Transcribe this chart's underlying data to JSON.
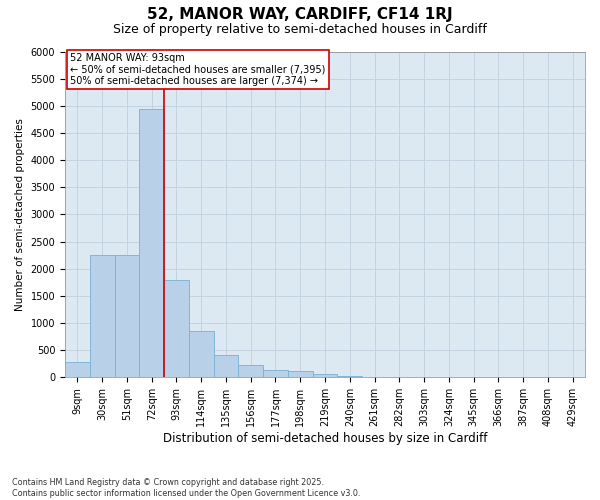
{
  "title": "52, MANOR WAY, CARDIFF, CF14 1RJ",
  "subtitle": "Size of property relative to semi-detached houses in Cardiff",
  "xlabel": "Distribution of semi-detached houses by size in Cardiff",
  "ylabel": "Number of semi-detached properties",
  "categories": [
    "9sqm",
    "30sqm",
    "51sqm",
    "72sqm",
    "93sqm",
    "114sqm",
    "135sqm",
    "156sqm",
    "177sqm",
    "198sqm",
    "219sqm",
    "240sqm",
    "261sqm",
    "282sqm",
    "303sqm",
    "324sqm",
    "345sqm",
    "366sqm",
    "387sqm",
    "408sqm",
    "429sqm"
  ],
  "values": [
    280,
    2250,
    2250,
    4950,
    1800,
    850,
    420,
    230,
    140,
    110,
    60,
    20,
    10,
    0,
    0,
    0,
    0,
    0,
    0,
    0,
    0
  ],
  "bar_color": "#b8d0e8",
  "bar_edge_color": "#7aafd4",
  "vline_color": "#cc0000",
  "vline_pos": 3.5,
  "annotation_text": "52 MANOR WAY: 93sqm\n← 50% of semi-detached houses are smaller (7,395)\n50% of semi-detached houses are larger (7,374) →",
  "annotation_box_color": "#ffffff",
  "annotation_box_edge": "#cc0000",
  "ylim": [
    0,
    6000
  ],
  "yticks": [
    0,
    500,
    1000,
    1500,
    2000,
    2500,
    3000,
    3500,
    4000,
    4500,
    5000,
    5500,
    6000
  ],
  "grid_color": "#c0d0e0",
  "bg_color": "#dce8f2",
  "footnote": "Contains HM Land Registry data © Crown copyright and database right 2025.\nContains public sector information licensed under the Open Government Licence v3.0.",
  "title_fontsize": 11,
  "subtitle_fontsize": 9,
  "xlabel_fontsize": 8.5,
  "ylabel_fontsize": 7.5,
  "tick_fontsize": 7,
  "annot_fontsize": 7
}
